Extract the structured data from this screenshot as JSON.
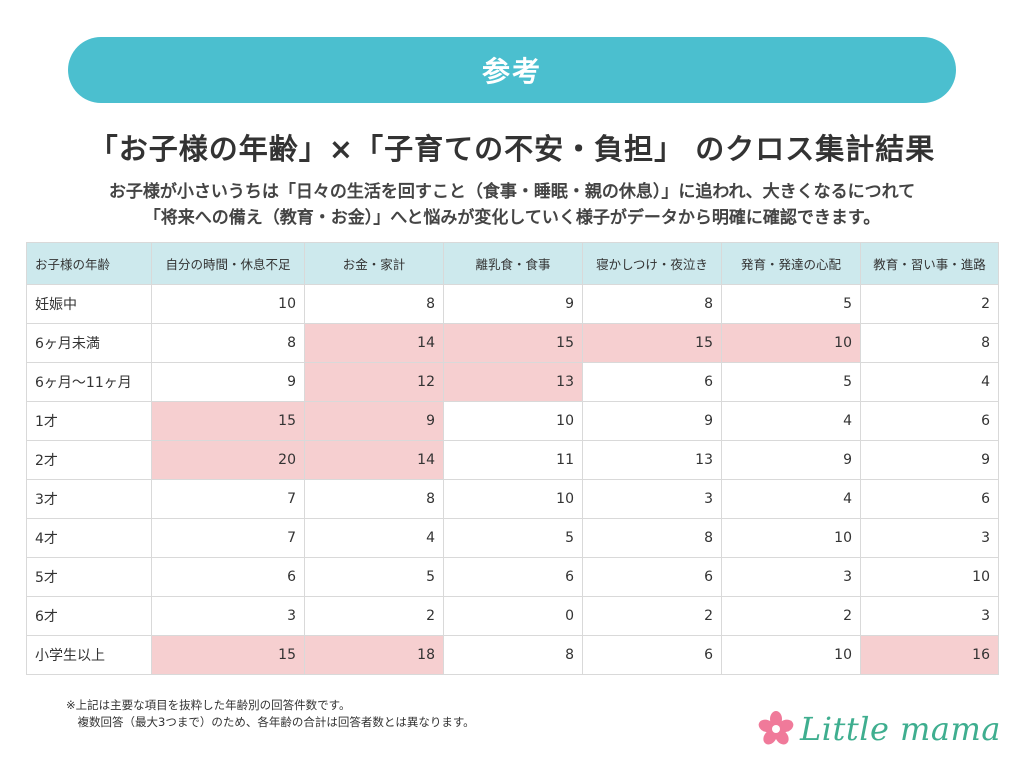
{
  "banner": {
    "label": "参考"
  },
  "title": "「お子様の年齢」×「子育ての不安・負担」 のクロス集計結果",
  "subtitle": {
    "line1": "お子様が小さいうちは「日々の生活を回すこと（食事・睡眠・親の休息）」に追われ、大きくなるにつれて",
    "line2": "「将来への備え（教育・お金）」へと悩みが変化していく様子がデータから明確に確認できます。"
  },
  "table": {
    "headers": [
      "お子様の年齢",
      "自分の時間・休息不足",
      "お金・家計",
      "離乳食・食事",
      "寝かしつけ・夜泣き",
      "発育・発達の心配",
      "教育・習い事・進路"
    ],
    "rows": [
      {
        "label": "妊娠中",
        "values": [
          10,
          8,
          9,
          8,
          5,
          2
        ],
        "highlight": [
          false,
          false,
          false,
          false,
          false,
          false
        ]
      },
      {
        "label": "6ヶ月未満",
        "values": [
          8,
          14,
          15,
          15,
          10,
          8
        ],
        "highlight": [
          false,
          true,
          true,
          true,
          true,
          false
        ]
      },
      {
        "label": "6ヶ月〜11ヶ月",
        "values": [
          9,
          12,
          13,
          6,
          5,
          4
        ],
        "highlight": [
          false,
          true,
          true,
          false,
          false,
          false
        ]
      },
      {
        "label": "1才",
        "values": [
          15,
          9,
          10,
          9,
          4,
          6
        ],
        "highlight": [
          true,
          true,
          false,
          false,
          false,
          false
        ]
      },
      {
        "label": "2才",
        "values": [
          20,
          14,
          11,
          13,
          9,
          9
        ],
        "highlight": [
          true,
          true,
          false,
          false,
          false,
          false
        ]
      },
      {
        "label": "3才",
        "values": [
          7,
          8,
          10,
          3,
          4,
          6
        ],
        "highlight": [
          false,
          false,
          false,
          false,
          false,
          false
        ]
      },
      {
        "label": "4才",
        "values": [
          7,
          4,
          5,
          8,
          10,
          3
        ],
        "highlight": [
          false,
          false,
          false,
          false,
          false,
          false
        ]
      },
      {
        "label": "5才",
        "values": [
          6,
          5,
          6,
          6,
          3,
          10
        ],
        "highlight": [
          false,
          false,
          false,
          false,
          false,
          false
        ]
      },
      {
        "label": "6才",
        "values": [
          3,
          2,
          0,
          2,
          2,
          3
        ],
        "highlight": [
          false,
          false,
          false,
          false,
          false,
          false
        ]
      },
      {
        "label": "小学生以上",
        "values": [
          15,
          18,
          8,
          6,
          10,
          16
        ],
        "highlight": [
          true,
          true,
          false,
          false,
          false,
          true
        ]
      }
    ]
  },
  "notes": {
    "line1": "※上記は主要な項目を抜粋した年齢別の回答件数です。",
    "line2": "　複数回答（最大3つまで）のため、各年齢の合計は回答者数とは異なります。"
  },
  "logo": {
    "text": "Little mama",
    "icon": "flower-icon"
  },
  "colors": {
    "accent": "#4bbfcf",
    "header_bg": "#cde9ed",
    "highlight": "#f6cfd0",
    "logo": "#3fae8f",
    "flower": "#f07a9a"
  }
}
